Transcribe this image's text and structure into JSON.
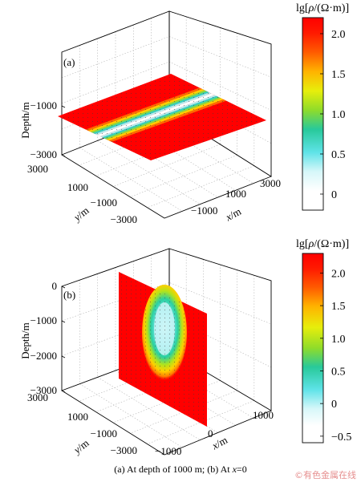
{
  "caption": {
    "before_italic": "(a) At depth of 1000 m; (b) At ",
    "italic": "x",
    "after_italic": "=0"
  },
  "watermark": "©有色金属在线",
  "chart_data": [
    {
      "type": "surface3d",
      "panel_label": "(a)",
      "slice": "horizontal plane at depth -1000 m",
      "zlabel": "Depth/m",
      "xlabel": "x/m",
      "ylabel": "y/m",
      "z_ticks": [
        "−1000",
        "−3000"
      ],
      "x_ticks": [
        "−1000",
        "1000",
        "3000"
      ],
      "y_ticks": [
        "3000",
        "1000",
        "−1000",
        "−3000"
      ],
      "xlim": [
        -3000,
        3000
      ],
      "ylim": [
        -3000,
        3000
      ],
      "zlim": [
        -3000,
        1000
      ],
      "colorbar": {
        "title": "lg[ρ/(Ω·m)]",
        "ticks": [
          "2.0",
          "1.5",
          "1.0",
          "0.5",
          "0"
        ],
        "range": [
          -0.2,
          2.2
        ]
      },
      "anomaly": {
        "background": 2.2,
        "minimum": -0.1,
        "orientation": "band parallel to x axis near y=0"
      }
    },
    {
      "type": "surface3d",
      "panel_label": "(b)",
      "slice": "vertical plane at x = 0",
      "zlabel": "Depth/m",
      "xlabel": "x/m",
      "ylabel": "y/m",
      "z_ticks": [
        "0",
        "−1000",
        "−2000",
        "−3000"
      ],
      "x_ticks": [
        "−1000",
        "0",
        "1000"
      ],
      "y_ticks": [
        "3000",
        "1000",
        "−1000",
        "−3000"
      ],
      "xlim": [
        -1000,
        1000
      ],
      "ylim": [
        -3000,
        3000
      ],
      "zlim": [
        -3000,
        0
      ],
      "colorbar": {
        "title": "lg[ρ/(Ω·m)]",
        "ticks": [
          "2.0",
          "1.5",
          "1.0",
          "0.5",
          "0",
          "−0.5"
        ],
        "range": [
          -0.6,
          2.3
        ]
      },
      "anomaly": {
        "background": 2.3,
        "minimum": -0.5,
        "orientation": "elliptical body centred near depth -1000 m"
      }
    }
  ]
}
